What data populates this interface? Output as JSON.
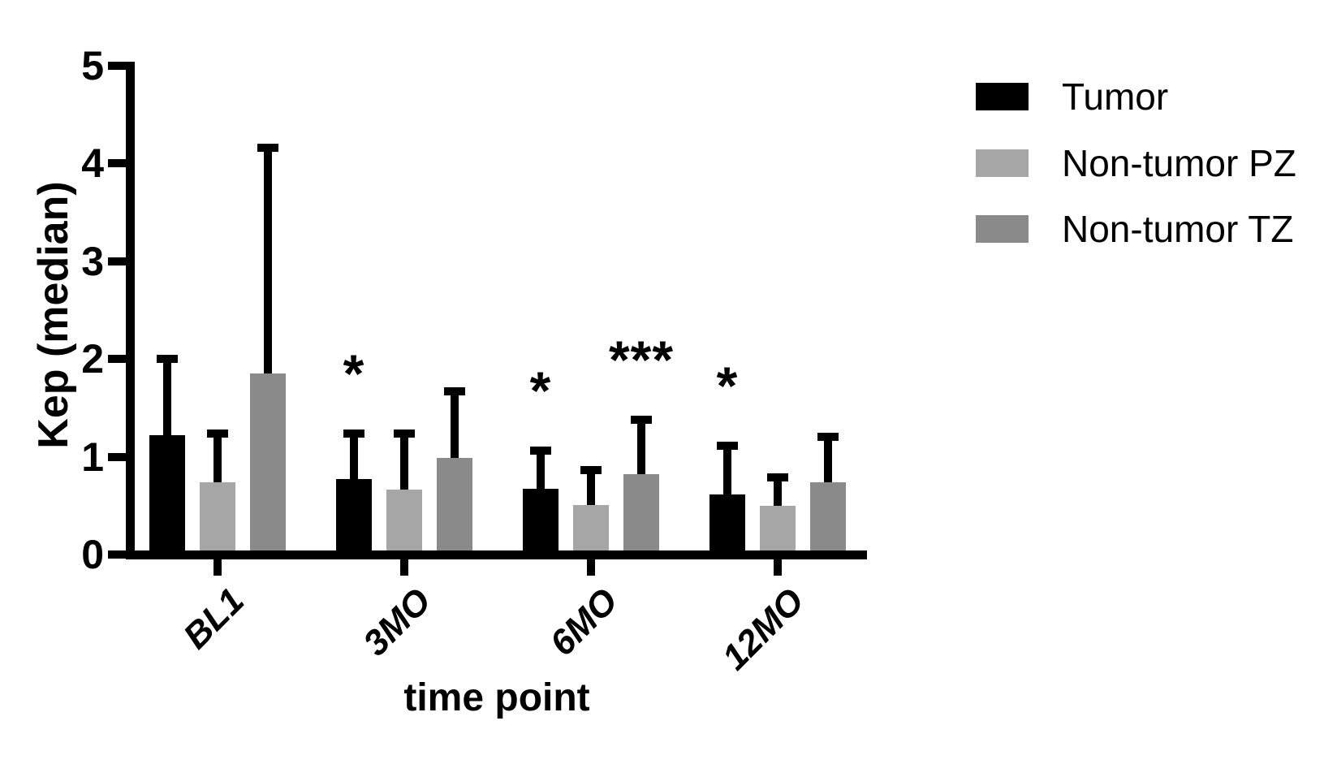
{
  "chart_data": {
    "type": "bar",
    "title": "",
    "xlabel": "time point",
    "ylabel": "Kep (median)",
    "ylim": [
      0,
      5
    ],
    "yticks": [
      0,
      1,
      2,
      3,
      4,
      5
    ],
    "categories": [
      "BL1",
      "3MO",
      "6MO",
      "12MO"
    ],
    "series": [
      {
        "name": "Tumor",
        "color": "#000000",
        "values": [
          1.22,
          0.77,
          0.67,
          0.61
        ],
        "errors_up": [
          0.78,
          0.47,
          0.39,
          0.5
        ]
      },
      {
        "name": "Non-tumor PZ",
        "color": "#A6A6A6",
        "values": [
          0.74,
          0.66,
          0.51,
          0.5
        ],
        "errors_up": [
          0.5,
          0.58,
          0.35,
          0.29
        ]
      },
      {
        "name": "Non-tumor TZ",
        "color": "#8A8A8A",
        "values": [
          1.85,
          0.99,
          0.82,
          0.74
        ],
        "errors_up": [
          2.31,
          0.68,
          0.56,
          0.46
        ]
      }
    ],
    "error_bars": "upper-sd-only",
    "annotations": [
      {
        "category": "3MO",
        "series": "Tumor",
        "text": "*"
      },
      {
        "category": "6MO",
        "series": "Tumor",
        "text": "*"
      },
      {
        "category": "6MO",
        "series": "Non-tumor TZ",
        "text": "***"
      },
      {
        "category": "12MO",
        "series": "Tumor",
        "text": "*"
      }
    ],
    "legend_position": "right",
    "grid": false,
    "background_color": "#FFFFFF",
    "axis_color": "#000000"
  }
}
